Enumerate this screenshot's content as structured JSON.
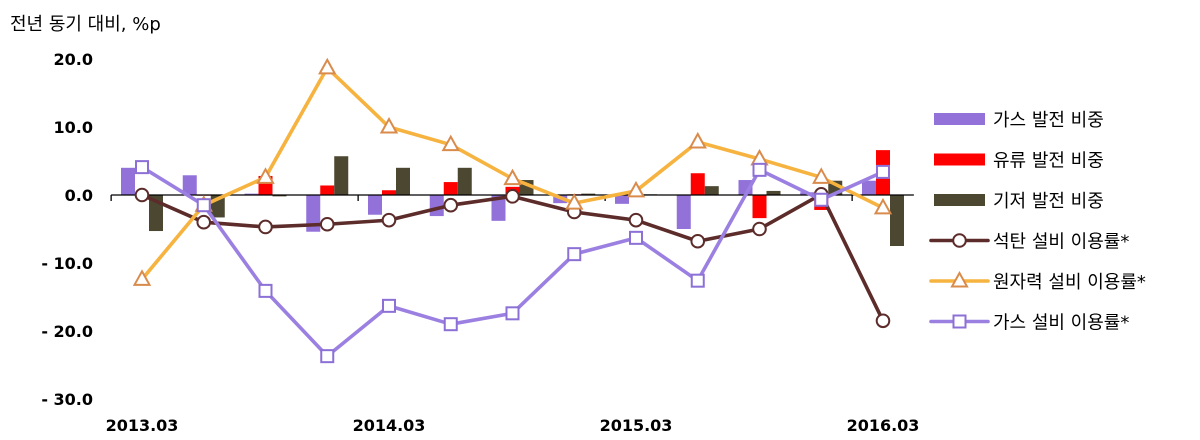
{
  "chart_data": {
    "type": "bar",
    "ylabel": "전년 동기 대비, %p",
    "ylim": [
      -30,
      20
    ],
    "grid": false,
    "legend": "right",
    "x": [
      "2013.03",
      "2013.06",
      "2013.09",
      "2013.12",
      "2014.03",
      "2014.06",
      "2014.09",
      "2014.12",
      "2015.03",
      "2015.06",
      "2015.09",
      "2015.12",
      "2016.03"
    ],
    "x_tick_labels": [
      "2013.03",
      "2014.03",
      "2015.03",
      "2016.03"
    ],
    "y_tick_labels": [
      "20.0",
      "10.0",
      "0.0",
      "- 10.0",
      "- 20.0",
      "- 30.0"
    ],
    "series": [
      {
        "name": "가스 발전 비중",
        "type": "bar",
        "color": "#9271d9",
        "values": [
          4.0,
          2.9,
          0.2,
          -5.4,
          -2.9,
          -3.1,
          -3.8,
          -1.2,
          -1.3,
          -5.0,
          2.2,
          0.4,
          2.1
        ]
      },
      {
        "name": "유류 발전 비중",
        "type": "bar",
        "color": "#ff0000",
        "values": [
          0.1,
          -0.1,
          2.8,
          1.4,
          0.7,
          1.9,
          1.2,
          0.1,
          0.0,
          3.2,
          -3.4,
          -2.2,
          6.6
        ]
      },
      {
        "name": "기저 발전 비중",
        "type": "bar",
        "color": "#4b4731",
        "values": [
          -5.3,
          -3.3,
          -0.2,
          5.7,
          4.0,
          4.0,
          2.2,
          0.2,
          0.1,
          1.3,
          0.6,
          2.1,
          -7.5
        ]
      },
      {
        "name": "석탄 설비 이용률*",
        "type": "line",
        "marker": "circle",
        "color": "#5c2c2a",
        "marker_color": "#5c2c2a",
        "values": [
          0.0,
          -4.0,
          -4.7,
          -4.3,
          -3.7,
          -1.5,
          -0.2,
          -2.5,
          -3.7,
          -6.8,
          -5.0,
          0.1,
          -18.5
        ]
      },
      {
        "name": "원자력 설비 이용률*",
        "type": "line",
        "marker": "triangle",
        "color": "#f6b33f",
        "marker_color": "#d98b4c",
        "values": [
          -12.4,
          -1.5,
          2.6,
          18.7,
          10.0,
          7.4,
          2.4,
          -1.2,
          0.6,
          7.8,
          5.3,
          2.6,
          -1.9
        ]
      },
      {
        "name": "가스 설비 이용률*",
        "type": "line",
        "marker": "square",
        "color": "#9b80e2",
        "marker_color": "#8c70d6",
        "values": [
          4.1,
          -1.5,
          -14.1,
          -23.7,
          -16.3,
          -19.0,
          -17.4,
          -8.7,
          -6.3,
          -12.6,
          3.7,
          -0.7,
          3.4
        ]
      }
    ]
  }
}
